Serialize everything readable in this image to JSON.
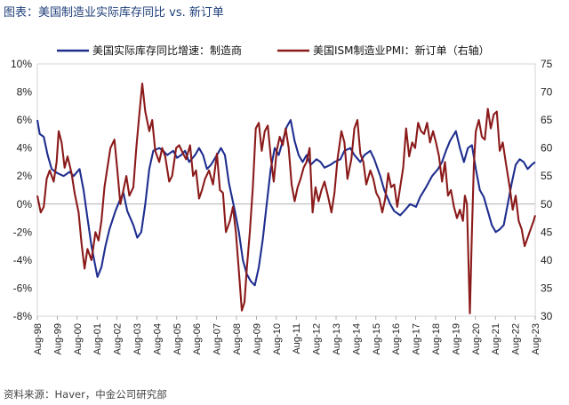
{
  "caption": "图表：美国制造业实际库存同比 vs. 新订单",
  "source": "资料来源：Haver，中金公司研究部",
  "chart_data": {
    "type": "line",
    "left_axis": {
      "ylim": [
        -8,
        10
      ],
      "ticks": [
        "-8%",
        "-6%",
        "-4%",
        "-2%",
        "0%",
        "2%",
        "4%",
        "6%",
        "8%",
        "10%"
      ]
    },
    "right_axis": {
      "ylim": [
        30,
        75
      ],
      "ticks": [
        "30",
        "35",
        "40",
        "45",
        "50",
        "55",
        "60",
        "65",
        "70",
        "75"
      ]
    },
    "x_ticks": [
      "Aug-98",
      "Aug-99",
      "Aug-00",
      "Aug-01",
      "Aug-02",
      "Aug-03",
      "Aug-04",
      "Aug-05",
      "Aug-06",
      "Aug-07",
      "Aug-08",
      "Aug-09",
      "Aug-10",
      "Aug-11",
      "Aug-12",
      "Aug-13",
      "Aug-14",
      "Aug-15",
      "Aug-16",
      "Aug-17",
      "Aug-18",
      "Aug-19",
      "Aug-20",
      "Aug-21",
      "Aug-22",
      "Aug-23"
    ],
    "series": [
      {
        "name": "美国实际库存同比增速：制造商",
        "axis": "left",
        "color": "#1f2e8f",
        "points": [
          [
            1998.58,
            6.0
          ],
          [
            1998.7,
            5.0
          ],
          [
            1998.9,
            4.8
          ],
          [
            1999.1,
            3.5
          ],
          [
            1999.3,
            2.5
          ],
          [
            1999.6,
            2.2
          ],
          [
            1999.9,
            2.0
          ],
          [
            2000.2,
            2.3
          ],
          [
            2000.4,
            2.0
          ],
          [
            2000.7,
            2.5
          ],
          [
            2000.9,
            1.0
          ],
          [
            2001.1,
            -1.0
          ],
          [
            2001.3,
            -3.0
          ],
          [
            2001.6,
            -5.2
          ],
          [
            2001.8,
            -4.5
          ],
          [
            2002.0,
            -3.0
          ],
          [
            2002.2,
            -1.8
          ],
          [
            2002.5,
            -0.5
          ],
          [
            2002.7,
            0.2
          ],
          [
            2002.9,
            0.8
          ],
          [
            2003.1,
            -0.5
          ],
          [
            2003.4,
            -1.5
          ],
          [
            2003.6,
            -2.4
          ],
          [
            2003.8,
            -2.0
          ],
          [
            2004.0,
            0.0
          ],
          [
            2004.2,
            2.5
          ],
          [
            2004.4,
            3.8
          ],
          [
            2004.7,
            4.0
          ],
          [
            2004.9,
            3.8
          ],
          [
            2005.1,
            3.5
          ],
          [
            2005.4,
            3.8
          ],
          [
            2005.6,
            3.3
          ],
          [
            2005.8,
            3.5
          ],
          [
            2006.0,
            3.8
          ],
          [
            2006.2,
            3.0
          ],
          [
            2006.5,
            3.5
          ],
          [
            2006.7,
            4.0
          ],
          [
            2006.9,
            3.5
          ],
          [
            2007.1,
            2.5
          ],
          [
            2007.3,
            2.8
          ],
          [
            2007.6,
            3.5
          ],
          [
            2007.8,
            4.0
          ],
          [
            2008.0,
            3.5
          ],
          [
            2008.2,
            1.5
          ],
          [
            2008.5,
            -0.5
          ],
          [
            2008.7,
            -2.0
          ],
          [
            2008.9,
            -4.0
          ],
          [
            2009.1,
            -5.0
          ],
          [
            2009.3,
            -5.5
          ],
          [
            2009.5,
            -5.8
          ],
          [
            2009.7,
            -4.5
          ],
          [
            2009.9,
            -2.5
          ],
          [
            2010.1,
            0.0
          ],
          [
            2010.3,
            2.5
          ],
          [
            2010.5,
            4.0
          ],
          [
            2010.7,
            3.5
          ],
          [
            2010.9,
            4.5
          ],
          [
            2011.1,
            5.5
          ],
          [
            2011.3,
            6.0
          ],
          [
            2011.5,
            4.5
          ],
          [
            2011.7,
            3.5
          ],
          [
            2011.9,
            3.0
          ],
          [
            2012.1,
            3.5
          ],
          [
            2012.3,
            2.8
          ],
          [
            2012.6,
            3.2
          ],
          [
            2012.8,
            3.0
          ],
          [
            2013.0,
            2.6
          ],
          [
            2013.3,
            2.8
          ],
          [
            2013.5,
            3.0
          ],
          [
            2013.8,
            3.2
          ],
          [
            2014.0,
            3.8
          ],
          [
            2014.3,
            4.0
          ],
          [
            2014.5,
            3.5
          ],
          [
            2014.8,
            3.0
          ],
          [
            2015.0,
            3.5
          ],
          [
            2015.3,
            3.8
          ],
          [
            2015.5,
            3.2
          ],
          [
            2015.8,
            2.0
          ],
          [
            2016.0,
            1.0
          ],
          [
            2016.3,
            0.0
          ],
          [
            2016.5,
            -0.5
          ],
          [
            2016.8,
            -0.8
          ],
          [
            2017.0,
            -0.5
          ],
          [
            2017.3,
            0.0
          ],
          [
            2017.6,
            -0.2
          ],
          [
            2017.8,
            0.5
          ],
          [
            2018.1,
            1.2
          ],
          [
            2018.4,
            2.0
          ],
          [
            2018.7,
            2.5
          ],
          [
            2018.9,
            3.0
          ],
          [
            2019.1,
            3.8
          ],
          [
            2019.3,
            4.5
          ],
          [
            2019.6,
            5.2
          ],
          [
            2019.8,
            4.0
          ],
          [
            2020.0,
            3.0
          ],
          [
            2020.2,
            4.0
          ],
          [
            2020.4,
            4.2
          ],
          [
            2020.6,
            2.5
          ],
          [
            2020.8,
            1.0
          ],
          [
            2021.0,
            0.5
          ],
          [
            2021.2,
            -0.5
          ],
          [
            2021.4,
            -1.5
          ],
          [
            2021.6,
            -2.0
          ],
          [
            2021.8,
            -1.8
          ],
          [
            2022.0,
            -1.5
          ],
          [
            2022.2,
            0.0
          ],
          [
            2022.4,
            1.5
          ],
          [
            2022.6,
            2.8
          ],
          [
            2022.8,
            3.2
          ],
          [
            2023.0,
            3.0
          ],
          [
            2023.2,
            2.5
          ],
          [
            2023.4,
            2.8
          ],
          [
            2023.58,
            3.0
          ]
        ]
      },
      {
        "name": "美国ISM制造业PMI：新订单（右轴）",
        "axis": "right",
        "color": "#8b1a1a",
        "points": [
          [
            1998.58,
            51.5
          ],
          [
            1998.75,
            48.5
          ],
          [
            1998.9,
            49.5
          ],
          [
            1999.05,
            54.5
          ],
          [
            1999.2,
            56.0
          ],
          [
            1999.4,
            54.0
          ],
          [
            1999.55,
            57.5
          ],
          [
            1999.65,
            63.0
          ],
          [
            1999.8,
            61.0
          ],
          [
            1999.95,
            56.5
          ],
          [
            2000.1,
            58.5
          ],
          [
            2000.3,
            55.5
          ],
          [
            2000.45,
            52.0
          ],
          [
            2000.65,
            48.5
          ],
          [
            2000.8,
            43.0
          ],
          [
            2000.95,
            38.5
          ],
          [
            2001.1,
            42.0
          ],
          [
            2001.3,
            40.0
          ],
          [
            2001.5,
            45.0
          ],
          [
            2001.65,
            43.5
          ],
          [
            2001.8,
            47.0
          ],
          [
            2001.95,
            53.0
          ],
          [
            2002.1,
            56.5
          ],
          [
            2002.25,
            60.0
          ],
          [
            2002.45,
            61.5
          ],
          [
            2002.6,
            56.0
          ],
          [
            2002.75,
            50.0
          ],
          [
            2002.9,
            52.5
          ],
          [
            2003.05,
            55.0
          ],
          [
            2003.2,
            51.5
          ],
          [
            2003.4,
            53.0
          ],
          [
            2003.55,
            60.0
          ],
          [
            2003.7,
            66.0
          ],
          [
            2003.85,
            71.5
          ],
          [
            2004.0,
            66.5
          ],
          [
            2004.2,
            63.0
          ],
          [
            2004.35,
            65.0
          ],
          [
            2004.5,
            59.5
          ],
          [
            2004.7,
            57.5
          ],
          [
            2004.85,
            60.0
          ],
          [
            2005.0,
            58.5
          ],
          [
            2005.2,
            54.0
          ],
          [
            2005.35,
            55.0
          ],
          [
            2005.55,
            60.0
          ],
          [
            2005.7,
            60.5
          ],
          [
            2005.9,
            59.0
          ],
          [
            2006.05,
            58.0
          ],
          [
            2006.25,
            60.5
          ],
          [
            2006.4,
            55.0
          ],
          [
            2006.55,
            56.0
          ],
          [
            2006.7,
            51.0
          ],
          [
            2006.85,
            52.5
          ],
          [
            2007.0,
            54.5
          ],
          [
            2007.2,
            56.0
          ],
          [
            2007.4,
            53.5
          ],
          [
            2007.6,
            59.0
          ],
          [
            2007.75,
            52.5
          ],
          [
            2007.9,
            52.0
          ],
          [
            2008.05,
            45.0
          ],
          [
            2008.25,
            47.0
          ],
          [
            2008.4,
            49.5
          ],
          [
            2008.55,
            45.0
          ],
          [
            2008.7,
            38.0
          ],
          [
            2008.85,
            31.0
          ],
          [
            2008.98,
            32.5
          ],
          [
            2009.1,
            38.5
          ],
          [
            2009.25,
            45.0
          ],
          [
            2009.4,
            53.0
          ],
          [
            2009.55,
            63.5
          ],
          [
            2009.7,
            64.5
          ],
          [
            2009.85,
            59.5
          ],
          [
            2010.0,
            63.0
          ],
          [
            2010.15,
            64.0
          ],
          [
            2010.3,
            58.5
          ],
          [
            2010.45,
            54.0
          ],
          [
            2010.6,
            59.5
          ],
          [
            2010.75,
            62.0
          ],
          [
            2010.9,
            60.5
          ],
          [
            2011.05,
            63.5
          ],
          [
            2011.2,
            60.0
          ],
          [
            2011.35,
            53.5
          ],
          [
            2011.5,
            50.5
          ],
          [
            2011.65,
            53.0
          ],
          [
            2011.8,
            54.5
          ],
          [
            2011.95,
            56.5
          ],
          [
            2012.1,
            57.5
          ],
          [
            2012.25,
            60.0
          ],
          [
            2012.4,
            48.5
          ],
          [
            2012.55,
            53.0
          ],
          [
            2012.7,
            50.5
          ],
          [
            2012.85,
            52.5
          ],
          [
            2013.0,
            54.0
          ],
          [
            2013.2,
            51.0
          ],
          [
            2013.35,
            48.5
          ],
          [
            2013.5,
            52.0
          ],
          [
            2013.65,
            58.0
          ],
          [
            2013.85,
            63.0
          ],
          [
            2014.0,
            61.0
          ],
          [
            2014.15,
            54.5
          ],
          [
            2014.35,
            58.0
          ],
          [
            2014.5,
            63.5
          ],
          [
            2014.65,
            65.0
          ],
          [
            2014.8,
            59.0
          ],
          [
            2014.95,
            57.5
          ],
          [
            2015.1,
            53.5
          ],
          [
            2015.3,
            56.0
          ],
          [
            2015.45,
            54.5
          ],
          [
            2015.6,
            52.0
          ],
          [
            2015.75,
            51.0
          ],
          [
            2015.9,
            48.5
          ],
          [
            2016.05,
            51.0
          ],
          [
            2016.2,
            55.5
          ],
          [
            2016.35,
            53.0
          ],
          [
            2016.5,
            53.5
          ],
          [
            2016.65,
            49.5
          ],
          [
            2016.8,
            53.0
          ],
          [
            2016.95,
            56.5
          ],
          [
            2017.1,
            63.5
          ],
          [
            2017.25,
            58.5
          ],
          [
            2017.4,
            61.0
          ],
          [
            2017.55,
            60.0
          ],
          [
            2017.7,
            64.5
          ],
          [
            2017.85,
            63.0
          ],
          [
            2018.0,
            62.5
          ],
          [
            2018.15,
            64.5
          ],
          [
            2018.3,
            61.0
          ],
          [
            2018.45,
            63.0
          ],
          [
            2018.6,
            61.0
          ],
          [
            2018.75,
            58.5
          ],
          [
            2018.9,
            54.0
          ],
          [
            2019.05,
            57.5
          ],
          [
            2019.2,
            51.5
          ],
          [
            2019.35,
            52.5
          ],
          [
            2019.5,
            49.5
          ],
          [
            2019.65,
            47.5
          ],
          [
            2019.8,
            49.0
          ],
          [
            2019.95,
            47.0
          ],
          [
            2020.05,
            51.5
          ],
          [
            2020.15,
            50.0
          ],
          [
            2020.3,
            30.5
          ],
          [
            2020.4,
            45.0
          ],
          [
            2020.5,
            57.0
          ],
          [
            2020.6,
            63.0
          ],
          [
            2020.75,
            65.0
          ],
          [
            2020.9,
            62.0
          ],
          [
            2021.05,
            61.5
          ],
          [
            2021.2,
            67.0
          ],
          [
            2021.35,
            63.5
          ],
          [
            2021.5,
            66.0
          ],
          [
            2021.65,
            66.5
          ],
          [
            2021.8,
            59.5
          ],
          [
            2021.95,
            61.0
          ],
          [
            2022.1,
            57.5
          ],
          [
            2022.3,
            53.0
          ],
          [
            2022.45,
            49.0
          ],
          [
            2022.6,
            51.5
          ],
          [
            2022.75,
            47.0
          ],
          [
            2022.9,
            45.5
          ],
          [
            2023.05,
            42.5
          ],
          [
            2023.2,
            44.0
          ],
          [
            2023.35,
            45.5
          ],
          [
            2023.5,
            47.0
          ],
          [
            2023.58,
            48.0
          ]
        ]
      }
    ]
  }
}
